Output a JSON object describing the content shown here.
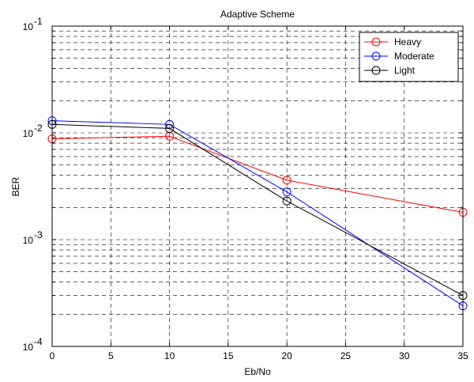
{
  "chart_data": {
    "type": "line",
    "title": "Adaptive Scheme",
    "xlabel": "Eb/No",
    "ylabel": "BER",
    "xlim": [
      0,
      35
    ],
    "ylim": [
      0.0001,
      0.1
    ],
    "yscale": "log",
    "grid": true,
    "legend_position": "top-right",
    "x_ticks": [
      "0",
      "5",
      "10",
      "15",
      "20",
      "25",
      "30",
      "35"
    ],
    "x_tick_values": [
      0,
      5,
      10,
      15,
      20,
      25,
      30,
      35
    ],
    "y_tick_values": [
      0.0001,
      0.001,
      0.01,
      0.1
    ],
    "y_tick_exponents": [
      "-4",
      "-3",
      "-2",
      "-1"
    ],
    "y_tick_base": "10",
    "series": [
      {
        "name": "Heavy",
        "color": "#ff0000",
        "x": [
          0,
          10,
          20,
          35
        ],
        "y": [
          0.0088,
          0.0093,
          0.0036,
          0.0018
        ]
      },
      {
        "name": "Moderate",
        "color": "#0000ff",
        "x": [
          0,
          10,
          20,
          35
        ],
        "y": [
          0.013,
          0.012,
          0.0028,
          0.00024
        ]
      },
      {
        "name": "Light",
        "color": "#000000",
        "x": [
          0,
          10,
          20,
          35
        ],
        "y": [
          0.012,
          0.011,
          0.0023,
          0.0003
        ]
      }
    ]
  }
}
